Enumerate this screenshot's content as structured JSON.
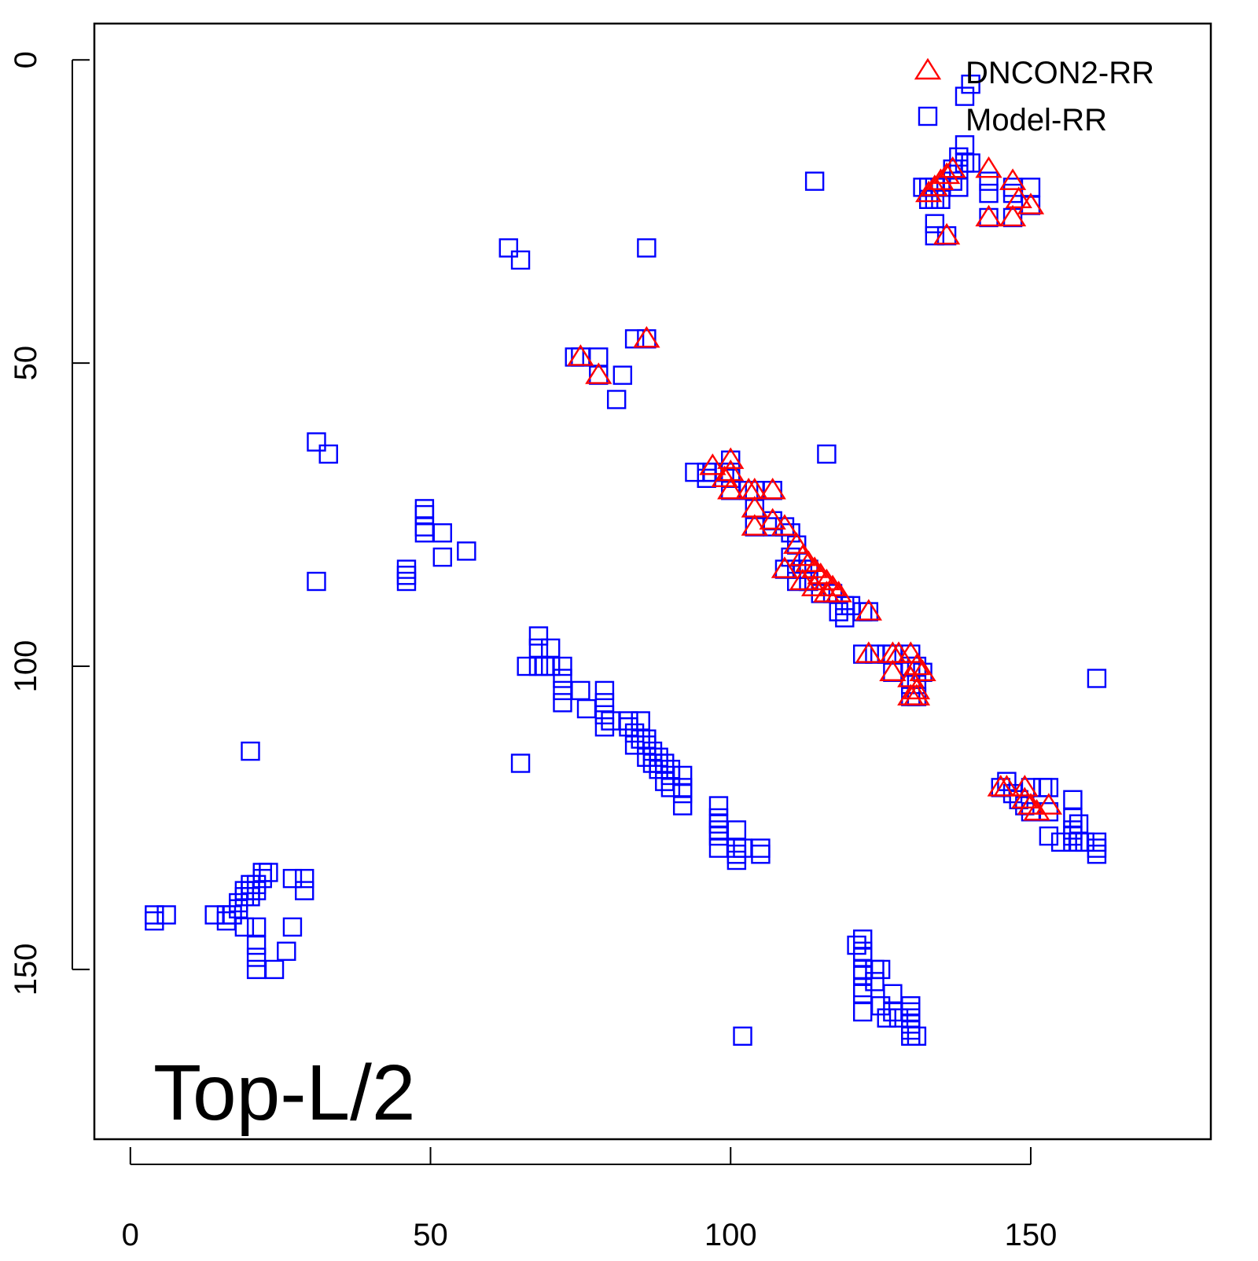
{
  "colors": {
    "dncon2": "#ff0000",
    "model": "#0000ff",
    "axis": "#000000",
    "background": "#ffffff"
  },
  "chart_data": {
    "type": "scatter",
    "title": "",
    "xlabel": "",
    "ylabel": "",
    "xlim": [
      -6,
      180
    ],
    "ylim": [
      178,
      -6
    ],
    "y_reversed": true,
    "xticks": [
      0,
      50,
      100,
      150
    ],
    "yticks": [
      0,
      50,
      100,
      150
    ],
    "grid": false,
    "legend_position": "top-right",
    "annotation": "Top-L/2",
    "series": [
      {
        "name": "DNCON2-RR",
        "marker": "triangle-open",
        "color": "#ff0000",
        "points": [
          [
            133,
            22
          ],
          [
            134,
            21
          ],
          [
            135,
            20
          ],
          [
            136,
            19
          ],
          [
            137,
            18
          ],
          [
            143,
            18
          ],
          [
            147,
            20
          ],
          [
            148,
            23
          ],
          [
            150,
            24
          ],
          [
            143,
            26
          ],
          [
            147,
            26
          ],
          [
            136,
            29
          ],
          [
            75,
            49
          ],
          [
            78,
            52
          ],
          [
            86,
            46
          ],
          [
            97,
            67
          ],
          [
            100,
            66
          ],
          [
            100,
            68
          ],
          [
            99,
            69
          ],
          [
            100,
            71
          ],
          [
            103,
            71
          ],
          [
            104,
            71
          ],
          [
            107,
            71
          ],
          [
            104,
            74
          ],
          [
            107,
            76
          ],
          [
            104,
            77
          ],
          [
            109,
            77
          ],
          [
            111,
            80
          ],
          [
            112,
            82
          ],
          [
            113,
            83
          ],
          [
            114,
            84
          ],
          [
            115,
            85
          ],
          [
            116,
            86
          ],
          [
            117,
            87
          ],
          [
            118,
            88
          ],
          [
            109,
            84
          ],
          [
            112,
            86
          ],
          [
            114,
            87
          ],
          [
            116,
            88
          ],
          [
            123,
            91
          ],
          [
            123,
            98
          ],
          [
            127,
            98
          ],
          [
            128,
            98
          ],
          [
            130,
            98
          ],
          [
            127,
            101
          ],
          [
            131,
            100
          ],
          [
            132,
            101
          ],
          [
            130,
            102
          ],
          [
            131,
            104
          ],
          [
            130,
            105
          ],
          [
            131,
            105
          ],
          [
            145,
            120
          ],
          [
            146,
            120
          ],
          [
            149,
            120
          ],
          [
            149,
            122
          ],
          [
            150,
            123
          ],
          [
            153,
            123
          ],
          [
            151,
            124
          ]
        ]
      },
      {
        "name": "Model-RR",
        "marker": "square-open",
        "color": "#0000ff",
        "points": [
          [
            140,
            4
          ],
          [
            139,
            6
          ],
          [
            139,
            14
          ],
          [
            138,
            16
          ],
          [
            139,
            17
          ],
          [
            140,
            17
          ],
          [
            137,
            18
          ],
          [
            138,
            18
          ],
          [
            114,
            20
          ],
          [
            132,
            21
          ],
          [
            133,
            21
          ],
          [
            134,
            21
          ],
          [
            135,
            21
          ],
          [
            137,
            20
          ],
          [
            138,
            21
          ],
          [
            143,
            20
          ],
          [
            147,
            21
          ],
          [
            150,
            21
          ],
          [
            143,
            22
          ],
          [
            147,
            22
          ],
          [
            150,
            24
          ],
          [
            133,
            23
          ],
          [
            134,
            23
          ],
          [
            135,
            23
          ],
          [
            143,
            26
          ],
          [
            147,
            26
          ],
          [
            134,
            27
          ],
          [
            134,
            29
          ],
          [
            136,
            29
          ],
          [
            63,
            31
          ],
          [
            65,
            33
          ],
          [
            86,
            31
          ],
          [
            84,
            46
          ],
          [
            86,
            46
          ],
          [
            74,
            49
          ],
          [
            75,
            49
          ],
          [
            78,
            49
          ],
          [
            78,
            52
          ],
          [
            82,
            52
          ],
          [
            81,
            56
          ],
          [
            31,
            63
          ],
          [
            33,
            65
          ],
          [
            116,
            65
          ],
          [
            94,
            68
          ],
          [
            96,
            68
          ],
          [
            97,
            68
          ],
          [
            96,
            69
          ],
          [
            99,
            68
          ],
          [
            100,
            68
          ],
          [
            100,
            66
          ],
          [
            100,
            69
          ],
          [
            100,
            71
          ],
          [
            103,
            71
          ],
          [
            104,
            71
          ],
          [
            107,
            71
          ],
          [
            104,
            74
          ],
          [
            107,
            76
          ],
          [
            104,
            77
          ],
          [
            107,
            77
          ],
          [
            109,
            77
          ],
          [
            110,
            78
          ],
          [
            111,
            80
          ],
          [
            110,
            82
          ],
          [
            111,
            84
          ],
          [
            112,
            84
          ],
          [
            113,
            84
          ],
          [
            109,
            84
          ],
          [
            111,
            86
          ],
          [
            113,
            86
          ],
          [
            115,
            88
          ],
          [
            117,
            88
          ],
          [
            119,
            90
          ],
          [
            120,
            90
          ],
          [
            118,
            91
          ],
          [
            119,
            92
          ],
          [
            122,
            91
          ],
          [
            123,
            91
          ],
          [
            49,
            74
          ],
          [
            49,
            75
          ],
          [
            49,
            77
          ],
          [
            49,
            78
          ],
          [
            52,
            78
          ],
          [
            56,
            81
          ],
          [
            52,
            82
          ],
          [
            46,
            84
          ],
          [
            46,
            85
          ],
          [
            46,
            86
          ],
          [
            31,
            86
          ],
          [
            68,
            95
          ],
          [
            68,
            97
          ],
          [
            70,
            97
          ],
          [
            68,
            100
          ],
          [
            66,
            100
          ],
          [
            69,
            100
          ],
          [
            70,
            100
          ],
          [
            72,
            100
          ],
          [
            122,
            98
          ],
          [
            124,
            98
          ],
          [
            126,
            98
          ],
          [
            127,
            98
          ],
          [
            130,
            98
          ],
          [
            127,
            101
          ],
          [
            130,
            100
          ],
          [
            131,
            100
          ],
          [
            132,
            101
          ],
          [
            130,
            103
          ],
          [
            131,
            103
          ],
          [
            130,
            105
          ],
          [
            131,
            105
          ],
          [
            72,
            102
          ],
          [
            72,
            104
          ],
          [
            72,
            106
          ],
          [
            75,
            104
          ],
          [
            79,
            104
          ],
          [
            79,
            106
          ],
          [
            76,
            107
          ],
          [
            79,
            108
          ],
          [
            80,
            109
          ],
          [
            79,
            110
          ],
          [
            83,
            109
          ],
          [
            85,
            109
          ],
          [
            83,
            110
          ],
          [
            84,
            111
          ],
          [
            85,
            112
          ],
          [
            86,
            112
          ],
          [
            84,
            113
          ],
          [
            86,
            113
          ],
          [
            87,
            114
          ],
          [
            86,
            115
          ],
          [
            87,
            115
          ],
          [
            88,
            115
          ],
          [
            87,
            116
          ],
          [
            88,
            116
          ],
          [
            89,
            116
          ],
          [
            88,
            117
          ],
          [
            89,
            117
          ],
          [
            90,
            117
          ],
          [
            90,
            118
          ],
          [
            89,
            119
          ],
          [
            92,
            118
          ],
          [
            90,
            120
          ],
          [
            92,
            120
          ],
          [
            92,
            121
          ],
          [
            92,
            123
          ],
          [
            65,
            116
          ],
          [
            161,
            102
          ],
          [
            146,
            119
          ],
          [
            145,
            120
          ],
          [
            147,
            121
          ],
          [
            150,
            120
          ],
          [
            152,
            120
          ],
          [
            153,
            120
          ],
          [
            148,
            122
          ],
          [
            149,
            123
          ],
          [
            150,
            124
          ],
          [
            153,
            124
          ],
          [
            157,
            122
          ],
          [
            157,
            125
          ],
          [
            158,
            126
          ],
          [
            157,
            127
          ],
          [
            157,
            128
          ],
          [
            153,
            128
          ],
          [
            155,
            129
          ],
          [
            157,
            129
          ],
          [
            158,
            129
          ],
          [
            159,
            129
          ],
          [
            161,
            129
          ],
          [
            161,
            130
          ],
          [
            161,
            131
          ],
          [
            98,
            123
          ],
          [
            98,
            125
          ],
          [
            98,
            126
          ],
          [
            98,
            127
          ],
          [
            98,
            128
          ],
          [
            98,
            130
          ],
          [
            101,
            127
          ],
          [
            101,
            130
          ],
          [
            101,
            131
          ],
          [
            101,
            132
          ],
          [
            102,
            130
          ],
          [
            105,
            130
          ],
          [
            105,
            131
          ],
          [
            22,
            134
          ],
          [
            23,
            134
          ],
          [
            22,
            135
          ],
          [
            20,
            136
          ],
          [
            21,
            136
          ],
          [
            19,
            137
          ],
          [
            20,
            137
          ],
          [
            21,
            137
          ],
          [
            19,
            138
          ],
          [
            20,
            138
          ],
          [
            18,
            139
          ],
          [
            18,
            140
          ],
          [
            17,
            141
          ],
          [
            16,
            141
          ],
          [
            16,
            142
          ],
          [
            14,
            141
          ],
          [
            27,
            135
          ],
          [
            29,
            135
          ],
          [
            29,
            137
          ],
          [
            4,
            141
          ],
          [
            6,
            141
          ],
          [
            4,
            142
          ],
          [
            20,
            114
          ],
          [
            19,
            143
          ],
          [
            21,
            143
          ],
          [
            27,
            143
          ],
          [
            21,
            146
          ],
          [
            21,
            148
          ],
          [
            26,
            147
          ],
          [
            21,
            150
          ],
          [
            24,
            150
          ],
          [
            121,
            146
          ],
          [
            122,
            145
          ],
          [
            122,
            147
          ],
          [
            122,
            148
          ],
          [
            122,
            150
          ],
          [
            122,
            151
          ],
          [
            122,
            153
          ],
          [
            122,
            154
          ],
          [
            124,
            150
          ],
          [
            125,
            150
          ],
          [
            124,
            152
          ],
          [
            127,
            154
          ],
          [
            127,
            157
          ],
          [
            125,
            156
          ],
          [
            122,
            157
          ],
          [
            126,
            158
          ],
          [
            128,
            158
          ],
          [
            130,
            156
          ],
          [
            130,
            157
          ],
          [
            130,
            158
          ],
          [
            130,
            159
          ],
          [
            130,
            160
          ],
          [
            130,
            161
          ],
          [
            131,
            161
          ],
          [
            102,
            161
          ]
        ]
      }
    ]
  }
}
